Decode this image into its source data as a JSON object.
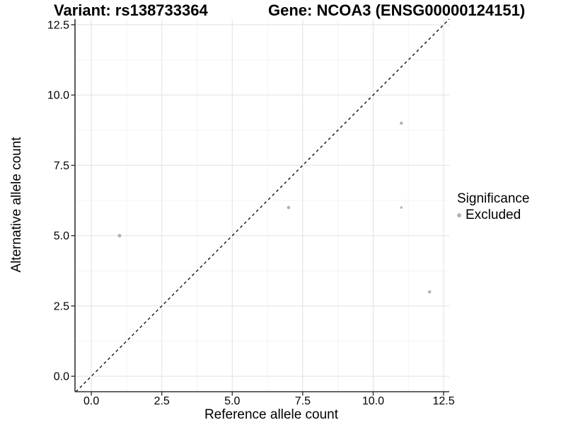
{
  "chart_data": {
    "type": "scatter",
    "title_left": "Variant: rs138733364",
    "title_right": "Gene: NCOA3 (ENSG00000124151)",
    "xlabel": "Reference allele count",
    "ylabel": "Alternative allele count",
    "xlim": [
      -0.58,
      12.7
    ],
    "ylim": [
      -0.55,
      12.7
    ],
    "x_ticks": [
      {
        "v": 0,
        "label": "0.0"
      },
      {
        "v": 2.5,
        "label": "2.5"
      },
      {
        "v": 5,
        "label": "5.0"
      },
      {
        "v": 7.5,
        "label": "7.5"
      },
      {
        "v": 10,
        "label": "10.0"
      },
      {
        "v": 12.5,
        "label": "12.5"
      }
    ],
    "y_ticks": [
      {
        "v": 0,
        "label": "0.0"
      },
      {
        "v": 2.5,
        "label": "2.5"
      },
      {
        "v": 5,
        "label": "5.0"
      },
      {
        "v": 7.5,
        "label": "7.5"
      },
      {
        "v": 10,
        "label": "10.0"
      },
      {
        "v": 12.5,
        "label": "12.5"
      }
    ],
    "x_minor_ticks": [
      1.25,
      3.75,
      6.25,
      8.75,
      11.25
    ],
    "y_minor_ticks": [
      1.25,
      3.75,
      6.25,
      8.75,
      11.25
    ],
    "grid": true,
    "identity_line": {
      "style": "dashed",
      "color": "#000000"
    },
    "series": [
      {
        "name": "Excluded",
        "color": "#b3b3b3",
        "points": [
          {
            "x": 1,
            "y": 5,
            "r": 2.6
          },
          {
            "x": 7,
            "y": 6,
            "r": 2.3
          },
          {
            "x": 11,
            "y": 9,
            "r": 2.3
          },
          {
            "x": 11,
            "y": 6,
            "r": 1.7
          },
          {
            "x": 12,
            "y": 3,
            "r": 2.3
          }
        ]
      }
    ],
    "legend": {
      "position": "right",
      "title": "Significance",
      "items": [
        {
          "label": "Excluded",
          "color": "#b3b3b3"
        }
      ]
    },
    "colors": {
      "axis_line": "#333333",
      "grid_major": "#e4e4e4",
      "grid_minor": "#f0f0f0",
      "point": "#b3b3b3",
      "text": "#000000"
    }
  }
}
